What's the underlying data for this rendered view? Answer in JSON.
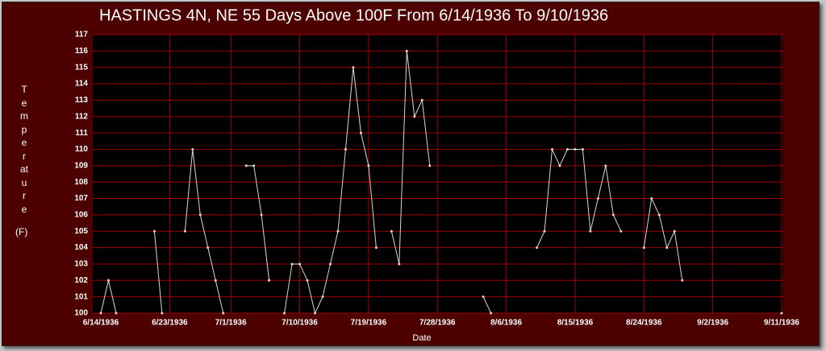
{
  "chart_data": {
    "type": "line",
    "title": "HASTINGS 4N, NE  55 Days Above 100F From 6/14/1936 To 9/10/1936",
    "xlabel": "Date",
    "ylabel": "Temperature",
    "yunit": "(F)",
    "categories": [
      "6/14/1936",
      null,
      null,
      null,
      null,
      null,
      null,
      null,
      null,
      "6/23/1936",
      null,
      null,
      null,
      null,
      null,
      null,
      null,
      "7/1/1936",
      null,
      null,
      null,
      null,
      null,
      null,
      null,
      null,
      "7/10/1936",
      null,
      null,
      null,
      null,
      null,
      null,
      null,
      null,
      "7/19/1936",
      null,
      null,
      null,
      null,
      null,
      null,
      null,
      null,
      "7/28/1936",
      null,
      null,
      null,
      null,
      null,
      null,
      null,
      null,
      "8/6/1936",
      null,
      null,
      null,
      null,
      null,
      null,
      null,
      null,
      "8/15/1936",
      null,
      null,
      null,
      null,
      null,
      null,
      null,
      null,
      "8/24/1936",
      null,
      null,
      null,
      null,
      null,
      null,
      null,
      null,
      "9/2/1936",
      null,
      null,
      null,
      null,
      null,
      null,
      null,
      null,
      "9/11/1936"
    ],
    "values": [
      100,
      102,
      100,
      null,
      null,
      null,
      null,
      105,
      100,
      null,
      null,
      105,
      110,
      106,
      104,
      102,
      100,
      null,
      null,
      109,
      109,
      106,
      102,
      null,
      100,
      103,
      103,
      102,
      100,
      101,
      103,
      105,
      110,
      115,
      111,
      109,
      104,
      null,
      105,
      103,
      116,
      112,
      113,
      109,
      null,
      null,
      null,
      null,
      null,
      null,
      101,
      100,
      null,
      null,
      null,
      null,
      null,
      104,
      105,
      110,
      109,
      110,
      110,
      110,
      105,
      107,
      109,
      106,
      105,
      null,
      null,
      104,
      107,
      106,
      104,
      105,
      102,
      null,
      null,
      null,
      null,
      null,
      null,
      null,
      null,
      null,
      null,
      null,
      null,
      100
    ],
    "color": "#d8d8d8",
    "ylim": [
      100,
      117
    ],
    "yticks": [
      100,
      101,
      102,
      103,
      104,
      105,
      106,
      107,
      108,
      109,
      110,
      111,
      112,
      113,
      114,
      115,
      116,
      117
    ],
    "grid": true
  }
}
